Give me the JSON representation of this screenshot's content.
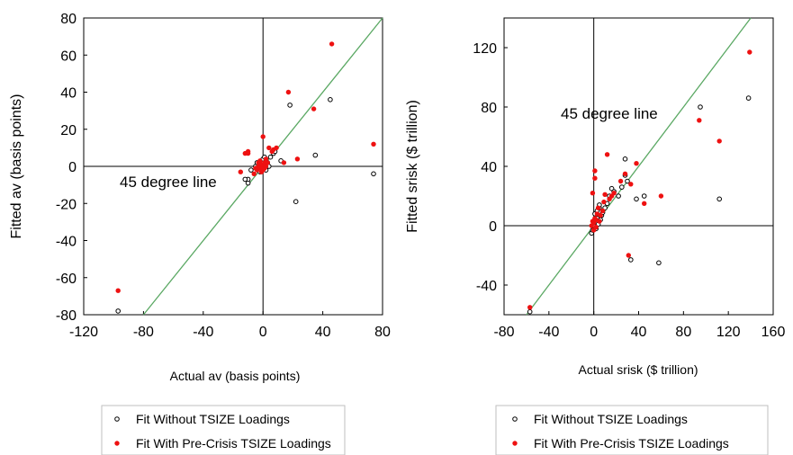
{
  "chart_data": [
    {
      "type": "scatter",
      "xlabel": "Actual av (basis points)",
      "ylabel": "Fitted av (basis points)",
      "xlim": [
        -120,
        80
      ],
      "ylim": [
        -80,
        80
      ],
      "xticks": [
        "-120",
        "-80",
        "-40",
        "0",
        "40",
        "80"
      ],
      "yticks": [
        "80",
        "60",
        "40",
        "20",
        "0",
        "-20",
        "-40",
        "-60",
        "-80"
      ],
      "xtick_values": [
        -120,
        -80,
        -40,
        0,
        40,
        80
      ],
      "ytick_values": [
        80,
        60,
        40,
        20,
        0,
        -20,
        -40,
        -60,
        -80
      ],
      "reference_line": "45 degree line",
      "annotation": "45 degree line",
      "legend": [
        "Fit Without TSIZE Loadings",
        "Fit With Pre-Crisis TSIZE Loadings"
      ],
      "series": [
        {
          "name": "Fit Without TSIZE Loadings",
          "marker": "hollow-circle",
          "color": "#000000",
          "points": [
            [
              -97,
              -78
            ],
            [
              -10,
              -9
            ],
            [
              -10,
              -7
            ],
            [
              -12,
              -7
            ],
            [
              -8,
              -2
            ],
            [
              -5,
              0
            ],
            [
              -4,
              2
            ],
            [
              -3,
              -1
            ],
            [
              -3,
              0
            ],
            [
              -2,
              1
            ],
            [
              -2,
              -3
            ],
            [
              -1,
              2
            ],
            [
              -1,
              3
            ],
            [
              0,
              0
            ],
            [
              0,
              2
            ],
            [
              0,
              4
            ],
            [
              1,
              5
            ],
            [
              1,
              1
            ],
            [
              2,
              -2
            ],
            [
              2,
              3
            ],
            [
              3,
              2
            ],
            [
              4,
              0
            ],
            [
              5,
              5
            ],
            [
              7,
              7
            ],
            [
              8,
              8
            ],
            [
              12,
              3
            ],
            [
              18,
              33
            ],
            [
              22,
              -19
            ],
            [
              35,
              6
            ],
            [
              45,
              36
            ],
            [
              74,
              -4
            ]
          ]
        },
        {
          "name": "Fit With Pre-Crisis TSIZE Loadings",
          "marker": "filled-circle",
          "color": "#ee1111",
          "points": [
            [
              -97,
              -67
            ],
            [
              -15,
              -3
            ],
            [
              -12,
              7
            ],
            [
              -10,
              7
            ],
            [
              -10,
              8
            ],
            [
              -6,
              -4
            ],
            [
              -5,
              -1
            ],
            [
              -4,
              -2
            ],
            [
              -3,
              0
            ],
            [
              -3,
              2
            ],
            [
              -2,
              -1
            ],
            [
              -2,
              3
            ],
            [
              -1,
              1
            ],
            [
              -1,
              -3
            ],
            [
              0,
              -2
            ],
            [
              0,
              0
            ],
            [
              0,
              16
            ],
            [
              1,
              2
            ],
            [
              1,
              -1
            ],
            [
              2,
              0
            ],
            [
              2,
              4
            ],
            [
              3,
              2
            ],
            [
              4,
              10
            ],
            [
              6,
              8
            ],
            [
              7,
              9
            ],
            [
              9,
              10
            ],
            [
              14,
              2
            ],
            [
              17,
              40
            ],
            [
              23,
              4
            ],
            [
              34,
              31
            ],
            [
              46,
              66
            ],
            [
              74,
              12
            ]
          ]
        }
      ]
    },
    {
      "type": "scatter",
      "xlabel": "Actual srisk ($ trillion)",
      "ylabel": "Fitted srisk ($ trillion)",
      "xlim": [
        -80,
        160
      ],
      "ylim": [
        -60,
        140
      ],
      "xticks": [
        "-80",
        "-40",
        "0",
        "40",
        "80",
        "120",
        "160"
      ],
      "yticks": [
        "120",
        "80",
        "40",
        "0",
        "-40"
      ],
      "xtick_values": [
        -80,
        -40,
        0,
        40,
        80,
        120,
        160
      ],
      "ytick_values": [
        120,
        80,
        40,
        0,
        -40
      ],
      "reference_line": "45 degree line",
      "annotation": "45 degree line",
      "legend": [
        "Fit Without TSIZE Loadings",
        "Fit With Pre-Crisis TSIZE Loadings"
      ],
      "series": [
        {
          "name": "Fit Without TSIZE Loadings",
          "marker": "hollow-circle",
          "color": "#000000",
          "points": [
            [
              -57,
              -58
            ],
            [
              -2,
              -5
            ],
            [
              -1,
              -3
            ],
            [
              0,
              0
            ],
            [
              0,
              2
            ],
            [
              1,
              4
            ],
            [
              1,
              8
            ],
            [
              2,
              -2
            ],
            [
              2,
              2
            ],
            [
              3,
              5
            ],
            [
              3,
              10
            ],
            [
              4,
              1
            ],
            [
              5,
              12
            ],
            [
              5,
              14
            ],
            [
              6,
              4
            ],
            [
              7,
              7
            ],
            [
              8,
              9
            ],
            [
              10,
              12
            ],
            [
              12,
              15
            ],
            [
              14,
              20
            ],
            [
              16,
              25
            ],
            [
              18,
              23
            ],
            [
              22,
              20
            ],
            [
              25,
              26
            ],
            [
              28,
              34
            ],
            [
              28,
              45
            ],
            [
              30,
              30
            ],
            [
              33,
              -23
            ],
            [
              38,
              18
            ],
            [
              45,
              20
            ],
            [
              58,
              -25
            ],
            [
              95,
              80
            ],
            [
              112,
              18
            ],
            [
              138,
              86
            ]
          ]
        },
        {
          "name": "Fit With Pre-Crisis TSIZE Loadings",
          "marker": "filled-circle",
          "color": "#ee1111",
          "points": [
            [
              -57,
              -55
            ],
            [
              -2,
              0
            ],
            [
              -1,
              3
            ],
            [
              -1,
              22
            ],
            [
              0,
              -3
            ],
            [
              0,
              2
            ],
            [
              1,
              5
            ],
            [
              1,
              32
            ],
            [
              1,
              37
            ],
            [
              2,
              -1
            ],
            [
              2,
              4
            ],
            [
              3,
              8
            ],
            [
              4,
              12
            ],
            [
              5,
              3
            ],
            [
              6,
              7
            ],
            [
              8,
              10
            ],
            [
              9,
              16
            ],
            [
              10,
              21
            ],
            [
              12,
              48
            ],
            [
              14,
              18
            ],
            [
              16,
              20
            ],
            [
              18,
              22
            ],
            [
              24,
              30
            ],
            [
              28,
              35
            ],
            [
              31,
              -20
            ],
            [
              33,
              28
            ],
            [
              38,
              42
            ],
            [
              45,
              15
            ],
            [
              60,
              20
            ],
            [
              94,
              71
            ],
            [
              112,
              57
            ],
            [
              139,
              117
            ]
          ]
        }
      ]
    }
  ]
}
